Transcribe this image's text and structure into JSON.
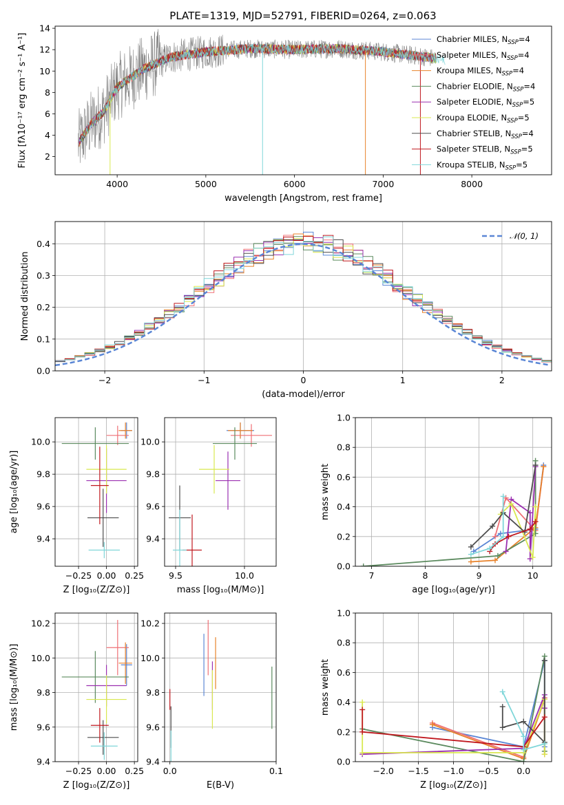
{
  "chart_data": [
    {
      "type": "line",
      "panel": "spectrum",
      "title": "PLATE=1319, MJD=52791, FIBERID=0264, z=0.063",
      "xlabel": "wavelength [Angstrom, rest frame]",
      "ylabel": "Flux [fλ10⁻¹⁷ erg cm⁻² s⁻¹ A⁻¹]",
      "xlim": [
        3300,
        8900
      ],
      "ylim": [
        0.3,
        14.2
      ],
      "xticks": [
        4000,
        5000,
        6000,
        7000,
        8000
      ],
      "yticks": [
        2,
        4,
        6,
        8,
        10,
        12,
        14
      ],
      "legend_position": "upper-right",
      "series": [
        {
          "name": "Chabrier MILES, N",
          "sub": "SSP",
          "suffix": "=4",
          "color": "#5a86d5"
        },
        {
          "name": "Salpeter MILES, N",
          "sub": "SSP",
          "suffix": "=4",
          "color": "#ef6f75"
        },
        {
          "name": "Kroupa MILES, N",
          "sub": "SSP",
          "suffix": "=4",
          "color": "#e8822a"
        },
        {
          "name": "Chabrier ELODIE, N",
          "sub": "SSP",
          "suffix": "=4",
          "color": "#5b8a5e"
        },
        {
          "name": "Salpeter ELODIE, N",
          "sub": "SSP",
          "suffix": "=5",
          "color": "#9a2fb0"
        },
        {
          "name": "Kroupa ELODIE, N",
          "sub": "SSP",
          "suffix": "=5",
          "color": "#d9e84f"
        },
        {
          "name": "Chabrier STELIB, N",
          "sub": "SSP",
          "suffix": "=4",
          "color": "#4d4d4d"
        },
        {
          "name": "Salpeter STELIB, N",
          "sub": "SSP",
          "suffix": "=5",
          "color": "#c0181f"
        },
        {
          "name": "Kroupa STELIB, N",
          "sub": "SSP",
          "suffix": "=5",
          "color": "#7fd6d9"
        }
      ],
      "data_color": "#808080",
      "continuum_knots": {
        "x": [
          3560,
          3700,
          3850,
          4000,
          4300,
          4600,
          5000,
          5500,
          6000,
          6500,
          7000,
          7500,
          8000,
          8500
        ],
        "y": [
          3.2,
          5.0,
          6.2,
          8.5,
          10.2,
          11.3,
          11.8,
          12.1,
          12.0,
          12.1,
          11.8,
          11.3,
          10.5,
          9.8
        ]
      }
    },
    {
      "type": "step",
      "panel": "residuals",
      "xlabel": "(data-model)/error",
      "ylabel": "Normed distribution",
      "xlim": [
        -2.5,
        2.5
      ],
      "ylim": [
        0,
        0.47
      ],
      "xticks": [
        -2,
        -1,
        0,
        1,
        2
      ],
      "xticklabels": [
        "−2",
        "−1",
        "0",
        "1",
        "2"
      ],
      "yticks": [
        0.0,
        0.1,
        0.2,
        0.3,
        0.4
      ],
      "yticklabels": [
        "0.0",
        "0.1",
        "0.2",
        "0.3",
        "0.4"
      ],
      "grid": true,
      "legend_label": "𝒩(0, 1)",
      "legend_position": "upper-right",
      "gaussian_color": "#5a86d5",
      "bin_width": 0.1
    },
    {
      "type": "scatter",
      "panel": "age-vs-Z",
      "xlabel": "Z [log₁₀(Z/Z⊙)]",
      "ylabel": "age  [log₁₀(age/yr)]",
      "xlim": [
        -0.46,
        0.28
      ],
      "ylim": [
        9.23,
        10.15
      ],
      "xticks": [
        -0.25,
        0.0,
        0.25
      ],
      "xticklabels": [
        "−0.25",
        "0.00",
        "0.25"
      ],
      "yticks": [
        9.4,
        9.6,
        9.8,
        10.0
      ],
      "yticklabels": [
        "9.4",
        "9.6",
        "9.8",
        "10.0"
      ],
      "grid": true,
      "points": [
        {
          "x": 0.18,
          "y": 10.07,
          "xe": 0.05,
          "ye": 0.05,
          "color": "#5a86d5"
        },
        {
          "x": 0.1,
          "y": 10.04,
          "xe": 0.1,
          "ye": 0.06,
          "color": "#ef6f75"
        },
        {
          "x": 0.17,
          "y": 10.07,
          "xe": 0.06,
          "ye": 0.05,
          "color": "#e8822a"
        },
        {
          "x": -0.1,
          "y": 9.99,
          "xe": 0.3,
          "ye": 0.1,
          "color": "#5b8a5e"
        },
        {
          "x": 0.0,
          "y": 9.76,
          "xe": 0.18,
          "ye": 0.2,
          "color": "#9a2fb0"
        },
        {
          "x": 0.0,
          "y": 9.83,
          "xe": 0.18,
          "ye": 0.15,
          "color": "#d9e84f"
        },
        {
          "x": -0.03,
          "y": 9.53,
          "xe": 0.14,
          "ye": 0.18,
          "color": "#4d4d4d"
        },
        {
          "x": -0.06,
          "y": 9.73,
          "xe": 0.08,
          "ye": 0.24,
          "color": "#c0181f"
        },
        {
          "x": -0.02,
          "y": 9.33,
          "xe": 0.14,
          "ye": 0.05,
          "color": "#7fd6d9"
        }
      ]
    },
    {
      "type": "scatter",
      "panel": "age-vs-mass",
      "xlabel": "mass [log₁₀(M/M⊙)]",
      "ylabel": "",
      "xlim": [
        9.42,
        10.23
      ],
      "ylim": [
        9.23,
        10.15
      ],
      "xticks": [
        9.5,
        10.0
      ],
      "xticklabels": [
        "9.5",
        "10.0"
      ],
      "yticks": [
        9.4,
        9.6,
        9.8,
        10.0
      ],
      "yticklabels": [
        "9.4",
        "9.6",
        "9.8",
        "10.0"
      ],
      "grid": true,
      "points": [
        {
          "x": 9.97,
          "y": 10.07,
          "xe": 0.1,
          "ye": 0.05,
          "color": "#5a86d5"
        },
        {
          "x": 10.05,
          "y": 10.04,
          "xe": 0.15,
          "ye": 0.07,
          "color": "#ef6f75"
        },
        {
          "x": 9.97,
          "y": 10.07,
          "xe": 0.09,
          "ye": 0.05,
          "color": "#e8822a"
        },
        {
          "x": 9.93,
          "y": 9.99,
          "xe": 0.16,
          "ye": 0.1,
          "color": "#5b8a5e"
        },
        {
          "x": 9.88,
          "y": 9.76,
          "xe": 0.09,
          "ye": 0.18,
          "color": "#9a2fb0"
        },
        {
          "x": 9.78,
          "y": 9.83,
          "xe": 0.11,
          "ye": 0.15,
          "color": "#d9e84f"
        },
        {
          "x": 9.53,
          "y": 9.53,
          "xe": 0.08,
          "ye": 0.2,
          "color": "#4d4d4d"
        },
        {
          "x": 9.62,
          "y": 9.33,
          "xe": 0.07,
          "ye": 0.22,
          "color": "#c0181f"
        },
        {
          "x": 9.53,
          "y": 9.33,
          "xe": 0.05,
          "ye": 0.25,
          "color": "#7fd6d9"
        }
      ]
    },
    {
      "type": "line",
      "panel": "mass-weight-vs-age",
      "xlabel": "age  [log₁₀(age/yr)]",
      "ylabel": "mass weight",
      "xlim": [
        6.7,
        10.35
      ],
      "ylim": [
        0,
        1
      ],
      "xticks": [
        7,
        8,
        9,
        10
      ],
      "xticklabels": [
        "7",
        "8",
        "9",
        "10"
      ],
      "yticks": [
        0.0,
        0.2,
        0.4,
        0.6,
        0.8,
        1.0
      ],
      "yticklabels": [
        "0.0",
        "0.2",
        "0.4",
        "0.6",
        "0.8",
        "1.0"
      ],
      "grid": true,
      "series": [
        {
          "color": "#5a86d5",
          "x": [
            8.9,
            9.4,
            10.05,
            10.2
          ],
          "y": [
            0.1,
            0.22,
            0.25,
            0.68
          ]
        },
        {
          "color": "#ef6f75",
          "x": [
            9.3,
            9.5,
            10.05,
            10.2
          ],
          "y": [
            0.2,
            0.46,
            0.24,
            0.67
          ]
        },
        {
          "color": "#e8822a",
          "x": [
            8.85,
            9.3,
            10.05,
            10.2
          ],
          "y": [
            0.03,
            0.04,
            0.26,
            0.67
          ]
        },
        {
          "color": "#5b8a5e",
          "x": [
            6.85,
            9.35,
            10.05,
            10.05
          ],
          "y": [
            0.0,
            0.07,
            0.22,
            0.71
          ]
        },
        {
          "color": "#9a2fb0",
          "x": [
            9.5,
            9.6,
            9.95,
            9.95,
            10.05
          ],
          "y": [
            0.1,
            0.45,
            0.36,
            0.05,
            0.67
          ]
        },
        {
          "color": "#d9e84f",
          "x": [
            9.4,
            9.6,
            10.0,
            10.05,
            10.05
          ],
          "y": [
            0.35,
            0.42,
            0.06,
            0.4,
            0.3
          ]
        },
        {
          "color": "#4d4d4d",
          "x": [
            8.85,
            9.25,
            9.45,
            9.85,
            10.05
          ],
          "y": [
            0.13,
            0.27,
            0.36,
            0.23,
            0.68
          ]
        },
        {
          "color": "#c0181f",
          "x": [
            9.2,
            9.3,
            9.55,
            9.95,
            10.05
          ],
          "y": [
            0.1,
            0.15,
            0.2,
            0.25,
            0.3
          ]
        },
        {
          "color": "#7fd6d9",
          "x": [
            8.85,
            9.2,
            9.45,
            9.45
          ],
          "y": [
            0.08,
            0.12,
            0.2,
            0.47
          ]
        }
      ]
    },
    {
      "type": "scatter",
      "panel": "mass-vs-Z",
      "xlabel": "Z [log₁₀(Z/Z⊙)]",
      "ylabel": "mass [log₁₀(M/M⊙)]",
      "xlim": [
        -0.46,
        0.28
      ],
      "ylim": [
        9.4,
        10.26
      ],
      "xticks": [
        -0.25,
        0.0,
        0.25
      ],
      "xticklabels": [
        "−0.25",
        "0.00",
        "0.25"
      ],
      "yticks": [
        9.4,
        9.6,
        9.8,
        10.0,
        10.2
      ],
      "yticklabels": [
        "9.4",
        "9.6",
        "9.8",
        "10.0",
        "10.2"
      ],
      "grid": true,
      "points": [
        {
          "x": 0.18,
          "y": 9.96,
          "xe": 0.05,
          "ye": 0.12,
          "color": "#5a86d5"
        },
        {
          "x": 0.1,
          "y": 10.06,
          "xe": 0.1,
          "ye": 0.16,
          "color": "#ef6f75"
        },
        {
          "x": 0.17,
          "y": 9.97,
          "xe": 0.06,
          "ye": 0.12,
          "color": "#e8822a"
        },
        {
          "x": -0.1,
          "y": 9.89,
          "xe": 0.3,
          "ye": 0.15,
          "color": "#5b8a5e"
        },
        {
          "x": 0.0,
          "y": 9.84,
          "xe": 0.18,
          "ye": 0.12,
          "color": "#9a2fb0"
        },
        {
          "x": 0.0,
          "y": 9.76,
          "xe": 0.18,
          "ye": 0.14,
          "color": "#d9e84f"
        },
        {
          "x": -0.03,
          "y": 9.54,
          "xe": 0.14,
          "ye": 0.1,
          "color": "#4d4d4d"
        },
        {
          "x": -0.06,
          "y": 9.61,
          "xe": 0.08,
          "ye": 0.1,
          "color": "#c0181f"
        },
        {
          "x": -0.02,
          "y": 9.49,
          "xe": 0.12,
          "ye": 0.08,
          "color": "#7fd6d9"
        }
      ]
    },
    {
      "type": "errorbar",
      "panel": "mass-vs-EBV",
      "xlabel": "E(B-V)",
      "ylabel": "",
      "xlim": [
        -0.005,
        0.1
      ],
      "ylim": [
        9.4,
        10.26
      ],
      "xticks": [
        0.0,
        0.1
      ],
      "xticklabels": [
        "0.0",
        "0.1"
      ],
      "yticks": [
        9.4,
        9.6,
        9.8,
        10.0,
        10.2
      ],
      "yticklabels": [
        "9.4",
        "9.6",
        "9.8",
        "10.0",
        "10.2"
      ],
      "grid": true,
      "points": [
        {
          "x": 0.032,
          "y": 9.96,
          "ye": 0.18,
          "color": "#5a86d5"
        },
        {
          "x": 0.036,
          "y": 10.06,
          "ye": 0.16,
          "color": "#ef6f75"
        },
        {
          "x": 0.043,
          "y": 9.97,
          "ye": 0.15,
          "color": "#e8822a"
        },
        {
          "x": 0.096,
          "y": 9.77,
          "ye": 0.18,
          "color": "#5b8a5e"
        },
        {
          "x": 0.04,
          "y": 9.84,
          "ye": 0.14,
          "color": "#9a2fb0"
        },
        {
          "x": 0.04,
          "y": 9.76,
          "ye": 0.17,
          "color": "#d9e84f"
        },
        {
          "x": 0.001,
          "y": 9.6,
          "ye": 0.12,
          "color": "#4d4d4d"
        },
        {
          "x": 0.0,
          "y": 9.76,
          "ye": 0.06,
          "color": "#c0181f"
        },
        {
          "x": 0.001,
          "y": 9.49,
          "ye": 0.09,
          "color": "#7fd6d9"
        }
      ]
    },
    {
      "type": "line",
      "panel": "mass-weight-vs-Z",
      "xlabel": "Z [log₁₀(Z/Z⊙)]",
      "ylabel": "mass weight",
      "xlim": [
        -2.4,
        0.4
      ],
      "ylim": [
        0,
        1
      ],
      "xticks": [
        -2.0,
        -1.5,
        -1.0,
        -0.5,
        0.0
      ],
      "xticklabels": [
        "−2.0",
        "−1.5",
        "−1.0",
        "−0.5",
        "0.0"
      ],
      "yticks": [
        0.0,
        0.2,
        0.4,
        0.6,
        0.8,
        1.0
      ],
      "yticklabels": [
        "0.0",
        "0.2",
        "0.4",
        "0.6",
        "0.8",
        "1.0"
      ],
      "grid": true,
      "series": [
        {
          "color": "#5a86d5",
          "x": [
            -1.3,
            0.0,
            0.3,
            0.3
          ],
          "y": [
            0.23,
            0.1,
            0.68,
            0.1
          ]
        },
        {
          "color": "#ef6f75",
          "x": [
            -1.3,
            0.0,
            0.3,
            0.3
          ],
          "y": [
            0.26,
            0.03,
            0.43,
            0.05
          ]
        },
        {
          "color": "#e8822a",
          "x": [
            -1.3,
            0.0,
            0.3,
            0.3
          ],
          "y": [
            0.25,
            0.02,
            0.42,
            0.05
          ]
        },
        {
          "color": "#5b8a5e",
          "x": [
            -2.3,
            0.0,
            0.3,
            0.3
          ],
          "y": [
            0.22,
            0.0,
            0.71,
            0.07
          ]
        },
        {
          "color": "#9a2fb0",
          "x": [
            -2.3,
            0.0,
            0.3,
            0.3
          ],
          "y": [
            0.05,
            0.09,
            0.45,
            0.36
          ]
        },
        {
          "color": "#d9e84f",
          "x": [
            -2.3,
            -2.3,
            0.0,
            0.3,
            0.3
          ],
          "y": [
            0.4,
            0.06,
            0.06,
            0.42,
            0.05
          ]
        },
        {
          "color": "#4d4d4d",
          "x": [
            -0.3,
            -0.3,
            0.0,
            0.3,
            0.3
          ],
          "y": [
            0.37,
            0.23,
            0.27,
            0.13,
            0.68
          ]
        },
        {
          "color": "#c0181f",
          "x": [
            -2.3,
            -2.3,
            0.0,
            0.3
          ],
          "y": [
            0.35,
            0.2,
            0.1,
            0.3
          ]
        },
        {
          "color": "#7fd6d9",
          "x": [
            -0.3,
            0.0,
            0.0,
            0.3
          ],
          "y": [
            0.47,
            0.17,
            0.08,
            0.12
          ]
        }
      ]
    }
  ]
}
